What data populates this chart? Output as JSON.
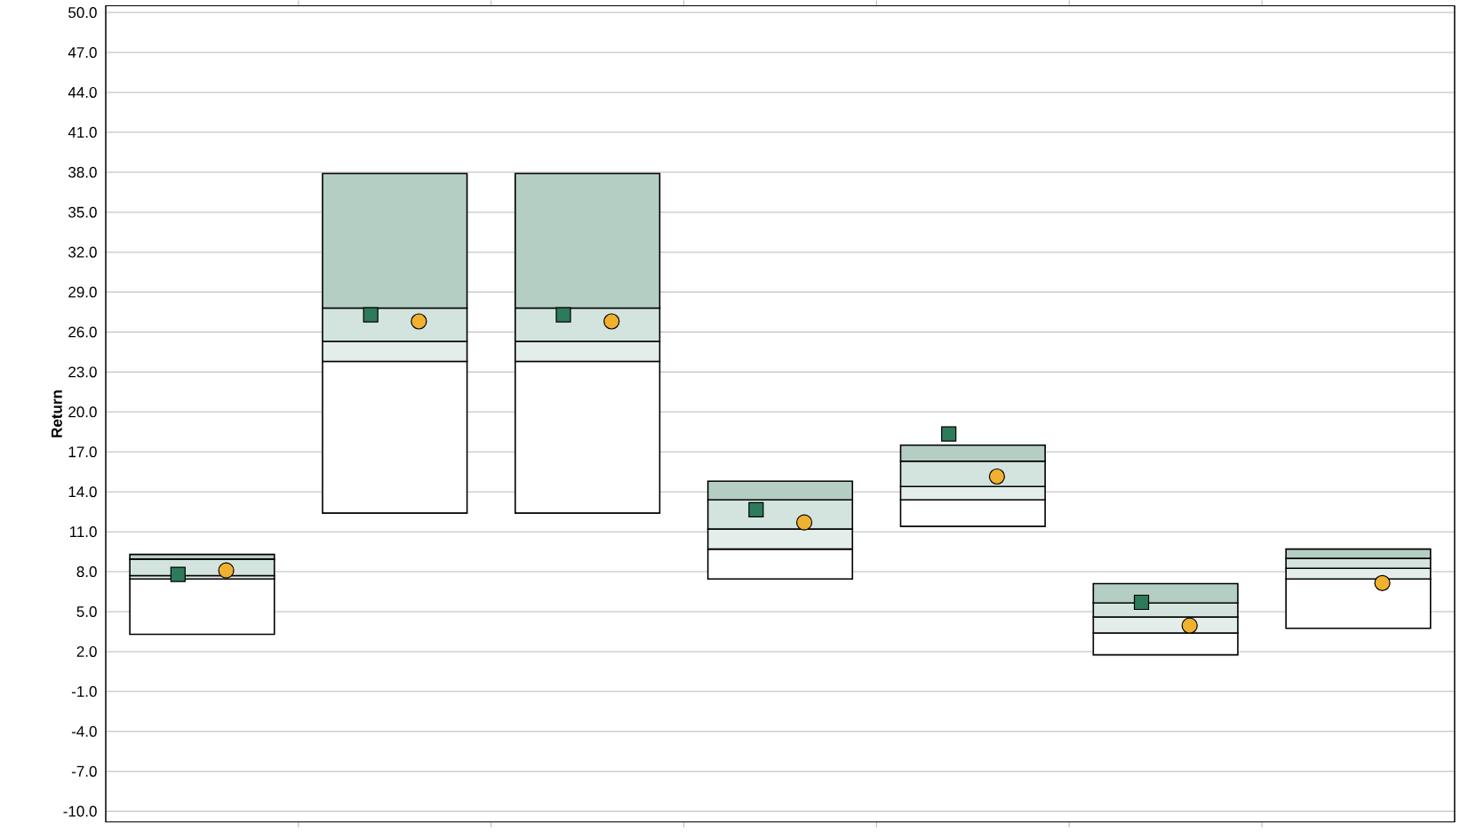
{
  "chart_data": {
    "type": "bar",
    "stacked": true,
    "ylabel": "Return",
    "categories": [
      null,
      null,
      null,
      null,
      null,
      null,
      null
    ],
    "series": [
      {
        "color": "#ffffff",
        "base": [
          3.3,
          12.4,
          12.4,
          7.45,
          11.4,
          1.75,
          3.75
        ],
        "values": [
          4.15,
          11.4,
          11.4,
          2.25,
          2.0,
          1.65,
          3.7
        ]
      },
      {
        "color": "#e3edea",
        "values": [
          0.25,
          1.5,
          1.5,
          1.5,
          1.0,
          1.2,
          0.8
        ]
      },
      {
        "color": "#d3e4de",
        "values": [
          1.25,
          2.5,
          2.5,
          2.2,
          1.9,
          1.05,
          0.75
        ]
      },
      {
        "color": "#b4cec3",
        "values": [
          0.35,
          10.1,
          10.1,
          1.4,
          1.2,
          1.45,
          0.7
        ]
      },
      {
        "type": "scatter",
        "marker": "square",
        "color": "#2e7b5b",
        "values": [
          7.8,
          27.3,
          27.3,
          12.65,
          18.35,
          5.7,
          null
        ]
      },
      {
        "type": "scatter",
        "marker": "circle",
        "color": "#f0b030",
        "values": [
          8.1,
          26.8,
          26.8,
          11.7,
          15.15,
          3.95,
          7.15
        ]
      }
    ],
    "ylim": [
      -10.8,
      50.5
    ],
    "yticks": [
      {
        "value": -10,
        "label": "-10.0"
      },
      {
        "value": -7,
        "label": "-7.0"
      },
      {
        "value": -4,
        "label": "-4.0"
      },
      {
        "value": -1,
        "label": "-1.0"
      },
      {
        "value": 2,
        "label": "2.0"
      },
      {
        "value": 5,
        "label": "5.0"
      },
      {
        "value": 8,
        "label": "8.0"
      },
      {
        "value": 11,
        "label": "11.0"
      },
      {
        "value": 14,
        "label": "14.0"
      },
      {
        "value": 17,
        "label": "17.0"
      },
      {
        "value": 20,
        "label": "20.0"
      },
      {
        "value": 23,
        "label": "23.0"
      },
      {
        "value": 26,
        "label": "26.0"
      },
      {
        "value": 29,
        "label": "29.0"
      },
      {
        "value": 32,
        "label": "32.0"
      },
      {
        "value": 35,
        "label": "35.0"
      },
      {
        "value": 38,
        "label": "38.0"
      },
      {
        "value": 41,
        "label": "41.0"
      },
      {
        "value": 44,
        "label": "44.0"
      },
      {
        "value": 47,
        "label": "47.0"
      },
      {
        "value": 50,
        "label": "50.0"
      }
    ],
    "grid": "y"
  }
}
